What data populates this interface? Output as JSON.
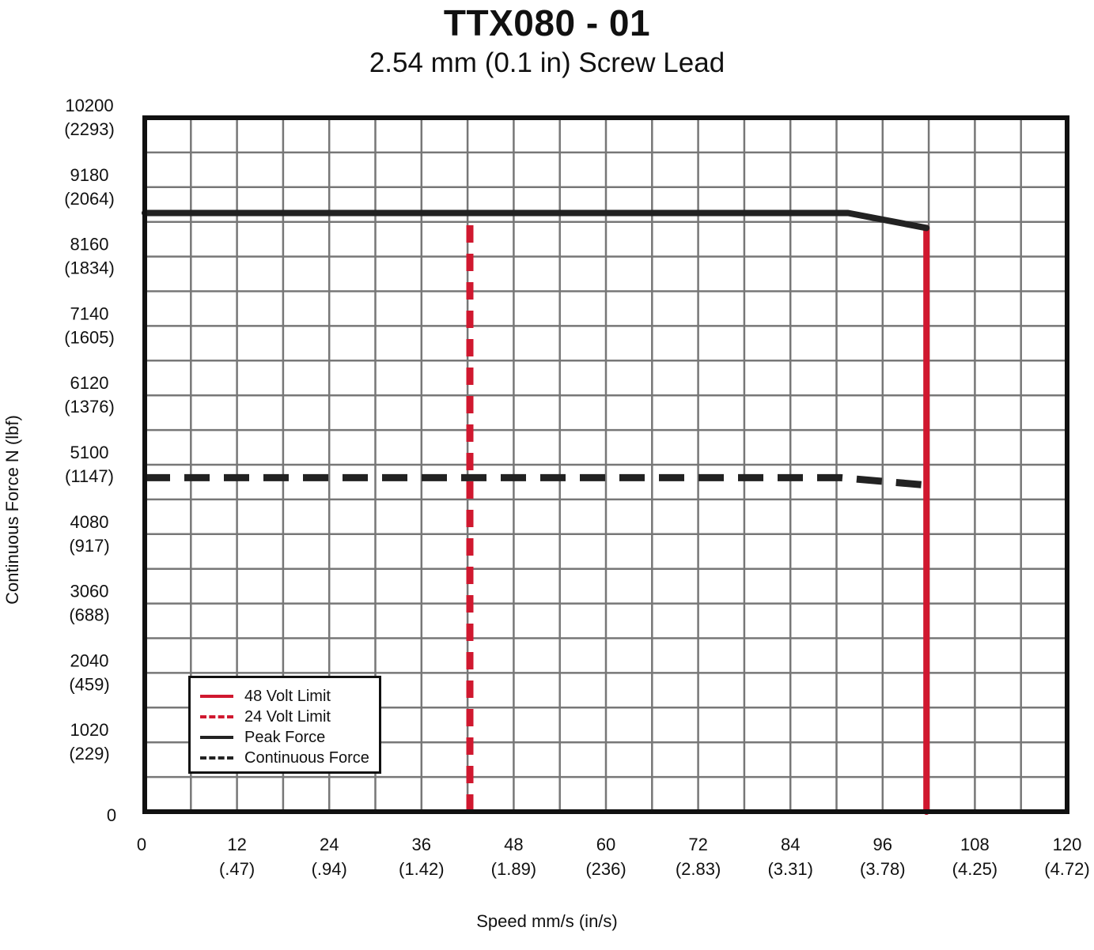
{
  "chart_data": {
    "type": "line",
    "title": "TTX080 - 01",
    "subtitle": "2.54 mm (0.1 in) Screw Lead",
    "xlabel": "Speed mm/s (in/s)",
    "ylabel": "Continuous Force N (lbf)",
    "xlim": [
      0,
      120
    ],
    "ylim": [
      0,
      10200
    ],
    "grid": true,
    "legend_position": "bottom-left",
    "x_ticks": [
      {
        "value": 0,
        "label": "0",
        "sub": ""
      },
      {
        "value": 12,
        "label": "12",
        "sub": "(.47)"
      },
      {
        "value": 24,
        "label": "24",
        "sub": "(.94)"
      },
      {
        "value": 36,
        "label": "36",
        "sub": "(1.42)"
      },
      {
        "value": 48,
        "label": "48",
        "sub": "(1.89)"
      },
      {
        "value": 60,
        "label": "60",
        "sub": "(236)"
      },
      {
        "value": 72,
        "label": "72",
        "sub": "(2.83)"
      },
      {
        "value": 84,
        "label": "84",
        "sub": "(3.31)"
      },
      {
        "value": 96,
        "label": "96",
        "sub": "(3.78)"
      },
      {
        "value": 108,
        "label": "108",
        "sub": "(4.25)"
      },
      {
        "value": 120,
        "label": "120",
        "sub": "(4.72)"
      }
    ],
    "y_ticks": [
      {
        "value": 0,
        "label": "0",
        "sub": ""
      },
      {
        "value": 1020,
        "label": "1020",
        "sub": "(229)"
      },
      {
        "value": 2040,
        "label": "2040",
        "sub": "(459)"
      },
      {
        "value": 3060,
        "label": "3060",
        "sub": "(688)"
      },
      {
        "value": 4080,
        "label": "4080",
        "sub": "(917)"
      },
      {
        "value": 5100,
        "label": "5100",
        "sub": "(1147)"
      },
      {
        "value": 6120,
        "label": "6120",
        "sub": "(1376)"
      },
      {
        "value": 7140,
        "label": "7140",
        "sub": "(1605)"
      },
      {
        "value": 8160,
        "label": "8160",
        "sub": "(1834)"
      },
      {
        "value": 9180,
        "label": "9180",
        "sub": "(2064)"
      },
      {
        "value": 10200,
        "label": "10200",
        "sub": "(2293)"
      }
    ],
    "series": [
      {
        "name": "48 Volt Limit",
        "color": "#d0182f",
        "style": "solid",
        "points": [
          [
            101.7,
            0
          ],
          [
            101.7,
            8580
          ]
        ]
      },
      {
        "name": "24 Volt Limit",
        "color": "#d0182f",
        "style": "dashed",
        "points": [
          [
            42.3,
            0
          ],
          [
            42.3,
            8800
          ]
        ]
      },
      {
        "name": "Peak Force",
        "color": "#222222",
        "style": "solid",
        "points": [
          [
            0,
            8800
          ],
          [
            90,
            8800
          ],
          [
            91.5,
            8800
          ],
          [
            101.7,
            8580
          ]
        ]
      },
      {
        "name": "Continuous Force",
        "color": "#222222",
        "style": "dashed",
        "points": [
          [
            0,
            4910
          ],
          [
            90.5,
            4910
          ],
          [
            101.7,
            4800
          ]
        ]
      }
    ]
  }
}
